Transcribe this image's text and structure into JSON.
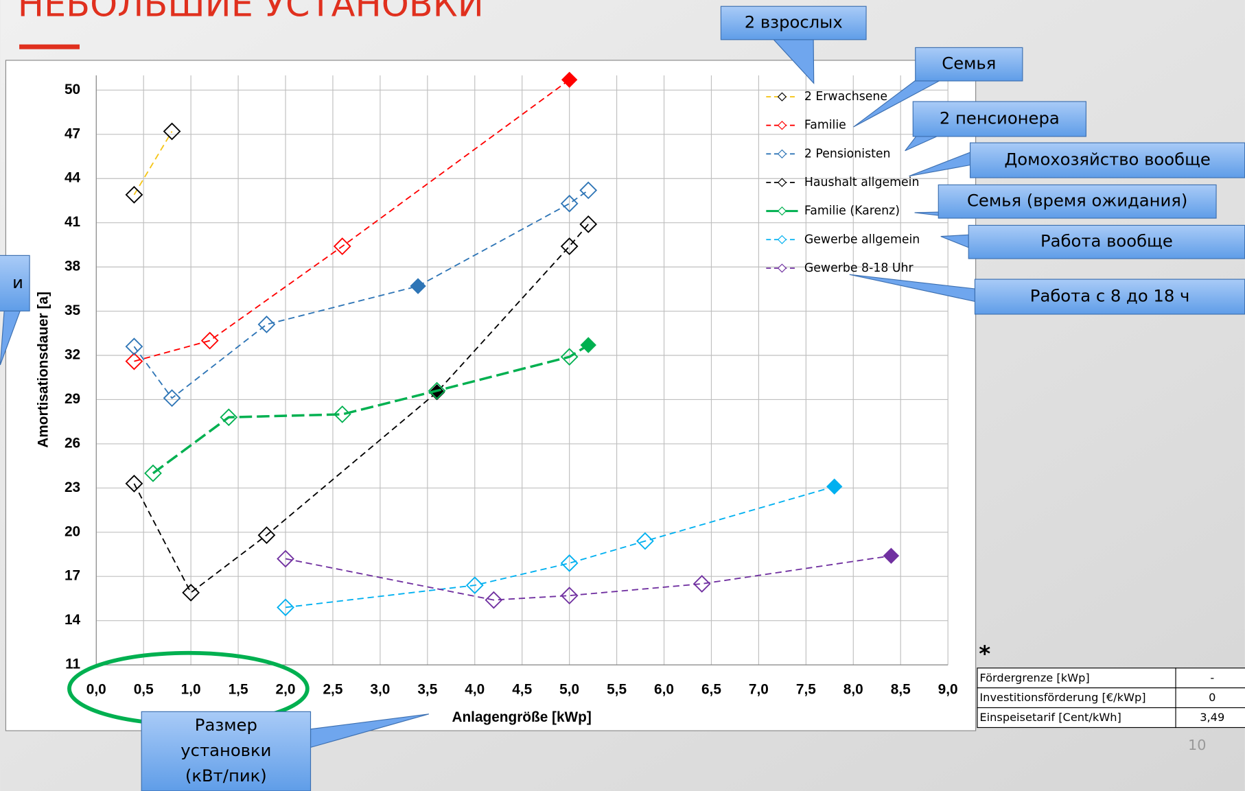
{
  "slide_title": "НЕБОЛЬШИЕ УСТАНОВКИ",
  "chart_data": {
    "type": "line",
    "xlabel": "Anlagengröße [kWp]",
    "ylabel": "Amortisationsdauer [a]",
    "xlim": [
      0,
      9
    ],
    "ylim": [
      11,
      51
    ],
    "xticks": [
      {
        "value": 0,
        "label": "0,0"
      },
      {
        "value": 0.5,
        "label": "0,5"
      },
      {
        "value": 1,
        "label": "1,0"
      },
      {
        "value": 1.5,
        "label": "1,5"
      },
      {
        "value": 2,
        "label": "2,0"
      },
      {
        "value": 2.5,
        "label": "2,5"
      },
      {
        "value": 3,
        "label": "3,0"
      },
      {
        "value": 3.5,
        "label": "3,5"
      },
      {
        "value": 4,
        "label": "4,0"
      },
      {
        "value": 4.5,
        "label": "4,5"
      },
      {
        "value": 5,
        "label": "5,0"
      },
      {
        "value": 5.5,
        "label": "5,5"
      },
      {
        "value": 6,
        "label": "6,0"
      },
      {
        "value": 6.5,
        "label": "6,5"
      },
      {
        "value": 7,
        "label": "7,0"
      },
      {
        "value": 7.5,
        "label": "7,5"
      },
      {
        "value": 8,
        "label": "8,0"
      },
      {
        "value": 8.5,
        "label": "8,5"
      },
      {
        "value": 9,
        "label": "9,0"
      }
    ],
    "yticks": [
      11,
      14,
      17,
      20,
      23,
      26,
      29,
      32,
      35,
      38,
      41,
      44,
      47,
      50
    ],
    "grid": true,
    "legend": "upper right",
    "series": [
      {
        "name": "2 Erwachsene",
        "color": "#f5c518",
        "marker_color": "#000000",
        "x": [
          0.4,
          0.8
        ],
        "values": [
          42.9,
          47.2
        ],
        "filled": [
          false,
          false
        ],
        "line_width": 1.6
      },
      {
        "name": "Familie",
        "color": "#ff0000",
        "marker_color": "#ff0000",
        "x": [
          0.4,
          1.2,
          2.6,
          5.0
        ],
        "values": [
          31.6,
          33.0,
          39.4,
          50.7
        ],
        "filled": [
          false,
          false,
          false,
          true
        ],
        "line_width": 1.6
      },
      {
        "name": "2 Pensionisten",
        "color": "#2e75b6",
        "marker_color": "#2e75b6",
        "x": [
          0.4,
          0.8,
          1.8,
          3.4,
          5.0,
          5.2
        ],
        "values": [
          32.6,
          29.1,
          34.1,
          36.7,
          42.3,
          43.2
        ],
        "filled": [
          false,
          false,
          false,
          true,
          false,
          false
        ],
        "line_width": 1.6
      },
      {
        "name": "Haushalt allgemein",
        "color": "#000000",
        "marker_color": "#000000",
        "x": [
          0.4,
          1.0,
          1.8,
          3.6,
          5.0,
          5.2
        ],
        "values": [
          23.3,
          15.9,
          19.8,
          29.5,
          39.4,
          40.9
        ],
        "filled": [
          false,
          false,
          false,
          true,
          false,
          false
        ],
        "line_width": 1.6
      },
      {
        "name": "Familie (Karenz)",
        "color": "#00b050",
        "marker_color": "#00b050",
        "x": [
          0.6,
          1.4,
          2.6,
          3.6,
          5.0,
          5.2
        ],
        "values": [
          24.0,
          27.8,
          28.0,
          29.6,
          31.9,
          32.7
        ],
        "filled": [
          false,
          false,
          false,
          false,
          false,
          true
        ],
        "line_width": 3
      },
      {
        "name": "Gewerbe allgemein",
        "color": "#00b0f0",
        "marker_color": "#00b0f0",
        "x": [
          2.0,
          4.0,
          5.0,
          5.8,
          7.8
        ],
        "values": [
          14.9,
          16.4,
          17.9,
          19.4,
          23.1
        ],
        "filled": [
          false,
          false,
          false,
          false,
          true
        ],
        "line_width": 1.6
      },
      {
        "name": "Gewerbe 8-18 Uhr",
        "color": "#7030a0",
        "marker_color": "#7030a0",
        "x": [
          2.0,
          4.2,
          5.0,
          6.4,
          8.4
        ],
        "values": [
          18.2,
          15.4,
          15.7,
          16.5,
          18.4
        ],
        "filled": [
          false,
          false,
          false,
          false,
          true
        ],
        "line_width": 1.6
      }
    ]
  },
  "callouts": [
    {
      "lines": [
        "2 взрослых"
      ]
    },
    {
      "lines": [
        "Семья"
      ]
    },
    {
      "lines": [
        "2 пенсионера"
      ]
    },
    {
      "lines": [
        "Домохозяйство вообще"
      ]
    },
    {
      "lines": [
        "Семья (время ожидания)"
      ]
    },
    {
      "lines": [
        "Работа вообще"
      ]
    },
    {
      "lines": [
        "Работа с 8 до 18 ч"
      ]
    },
    {
      "lines": [
        "Размер",
        "установки",
        "(кВт/пик)"
      ]
    },
    {
      "lines": [
        "и"
      ]
    }
  ],
  "note_mark": "*",
  "table": {
    "rows": [
      [
        "Fördergrenze [kWp]",
        "-"
      ],
      [
        "Investitionsförderung [€/kWp]",
        "0"
      ],
      [
        "Einspeisetarif [Cent/kWh]",
        "3,49"
      ]
    ]
  },
  "page_number": "10"
}
